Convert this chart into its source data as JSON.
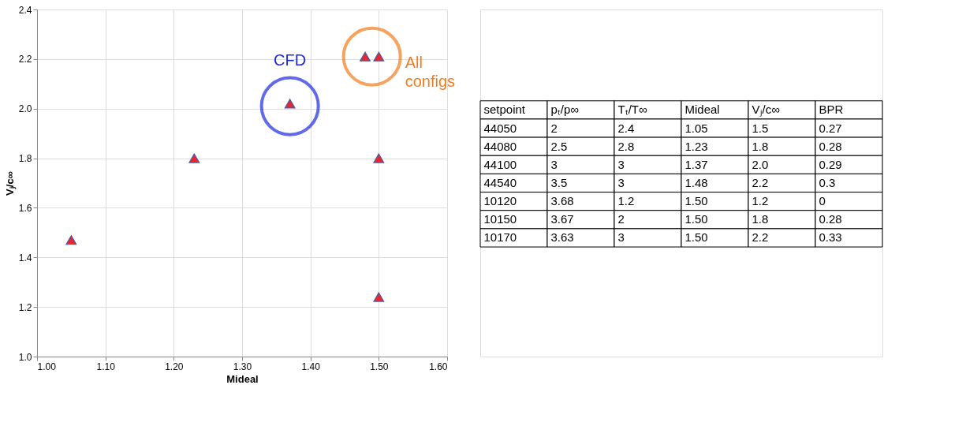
{
  "chart_data": [
    {
      "type": "scatter",
      "xlabel": "Mideal",
      "ylabel": "Vⱼ/c∞",
      "x": [
        1.05,
        1.23,
        1.37,
        1.48,
        1.5,
        1.5,
        1.5
      ],
      "series": [
        {
          "color": "#e8262b",
          "values": [
            1.47,
            1.8,
            2.02,
            2.21,
            2.21,
            1.8,
            1.24
          ]
        }
      ],
      "marker": "triangle",
      "grid": true,
      "xlim": [
        1.0,
        1.6
      ],
      "ylim": [
        1.0,
        2.4
      ],
      "xticks": [
        {
          "value": 1.0,
          "label": "1.00"
        },
        {
          "value": 1.1,
          "label": "1.10"
        },
        {
          "value": 1.2,
          "label": "1.20"
        },
        {
          "value": 1.3,
          "label": "1.30"
        },
        {
          "value": 1.4,
          "label": "1.40"
        },
        {
          "value": 1.5,
          "label": "1.50"
        },
        {
          "value": 1.6,
          "label": "1.60"
        }
      ],
      "yticks": [
        {
          "value": 1.0,
          "label": "1.0"
        },
        {
          "value": 1.2,
          "label": "1.2"
        },
        {
          "value": 1.4,
          "label": "1.4"
        },
        {
          "value": 1.6,
          "label": "1.6"
        },
        {
          "value": 1.8,
          "label": "1.8"
        },
        {
          "value": 2.0,
          "label": "2.0"
        },
        {
          "value": 2.2,
          "label": "2.2"
        },
        {
          "value": 2.4,
          "label": "2.4"
        }
      ],
      "annotations": [
        {
          "text": "CFD",
          "x": 1.37,
          "y": 2.01
        },
        {
          "text": "All configs",
          "x": 1.49,
          "y": 2.21
        }
      ]
    },
    {
      "type": "other",
      "categories": [
        "setpoint",
        "pₜ/p∞",
        "Tₜ/T∞",
        "Mideal",
        "Vⱼ/c∞",
        "BPR"
      ],
      "cell_labels": [
        [
          "44050",
          "2",
          "2.4",
          "1.05",
          "1.5",
          "0.27"
        ],
        [
          "44080",
          "2.5",
          "2.8",
          "1.23",
          "1.8",
          "0.28"
        ],
        [
          "44100",
          "3",
          "3",
          "1.37",
          "2.0",
          "0.29"
        ],
        [
          "44540",
          "3.5",
          "3",
          "1.48",
          "2.2",
          "0.3"
        ],
        [
          "10120",
          "3.68",
          "1.2",
          "1.50",
          "1.2",
          "0"
        ],
        [
          "10150",
          "3.67",
          "2",
          "1.50",
          "1.8",
          "0.28"
        ],
        [
          "10170",
          "3.63",
          "3",
          "1.50",
          "2.2",
          "0.33"
        ]
      ]
    }
  ]
}
